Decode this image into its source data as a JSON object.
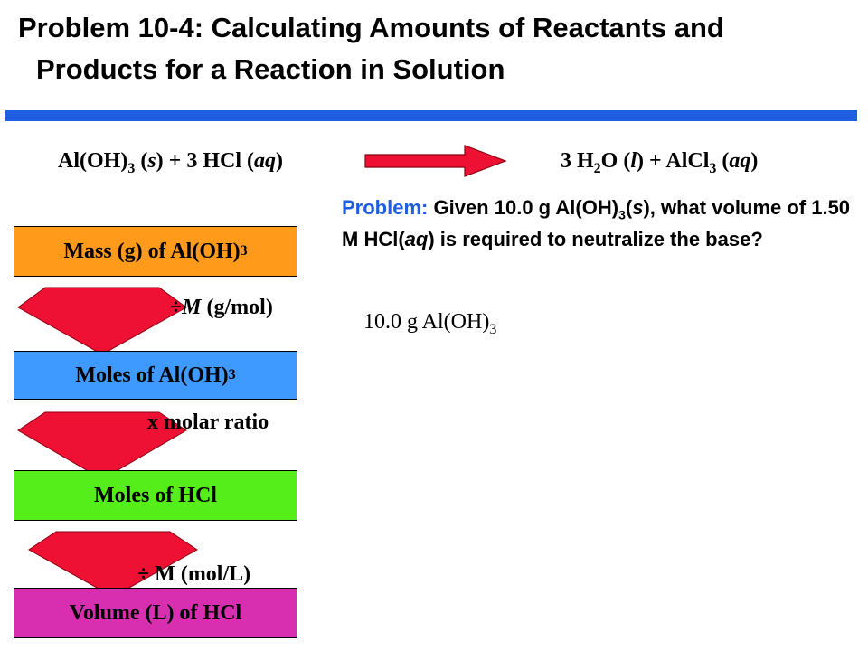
{
  "title": {
    "line1": "Problem 10-4: Calculating Amounts of Reactants and",
    "line2": "Products for a Reaction in Solution"
  },
  "equation": {
    "reactant1": "Al(OH)",
    "reactant1_sub": "3",
    "reactant1_state": "s",
    "plus": "+ 3 HCl",
    "reactant2_state": "aq",
    "product1_coef": "3 H",
    "product1_sub": "2",
    "product1_rest": "O",
    "product1_state": "l",
    "product2": "+ AlCl",
    "product2_sub": "3",
    "product2_state": "aq"
  },
  "flow": {
    "box1": {
      "label": "Mass (g) of Al(OH)",
      "sub": "3",
      "color": "#ff9a1a"
    },
    "step1": {
      "op": "÷",
      "var": "M",
      "unit": "(g/mol)"
    },
    "box2": {
      "label": "Moles of Al(OH)",
      "sub": "3",
      "color": "#3f9aff"
    },
    "step2": {
      "label": "x molar ratio"
    },
    "box3": {
      "label": "Moles of HCl",
      "color": "#55ee1a"
    },
    "step3": {
      "label": "÷ M (mol/L)"
    },
    "box4": {
      "label": "Volume (L) of HCl",
      "color": "#d82fb0"
    }
  },
  "problem": {
    "prefix": "Problem:",
    "t1": "Given 10.0 g Al(OH)",
    "sub": "3",
    "t2": "(",
    "s": "s",
    "t3": "), what volume of  1.50 M HCl(",
    "aq": "aq",
    "t4": ") is required to neutralize the  base?"
  },
  "start": {
    "text": "10.0 g Al(OH)",
    "sub": "3"
  },
  "colors": {
    "rule": "#1f5ee0",
    "arrow": "#ee1133",
    "problem_label": "#1f5ee0"
  }
}
